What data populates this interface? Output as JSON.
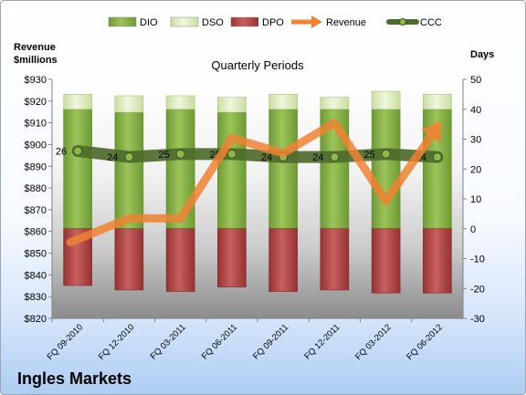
{
  "chart_data": {
    "type": "bar",
    "title": "Quarterly Periods",
    "company": "Ingles Markets",
    "left_axis_title": [
      "Revenue",
      "$millions"
    ],
    "right_axis_title": "Days",
    "left_ylim": [
      820,
      930
    ],
    "left_ticks": [
      "$820",
      "$830",
      "$840",
      "$850",
      "$860",
      "$870",
      "$880",
      "$890",
      "$900",
      "$910",
      "$920",
      "$930"
    ],
    "right_ylim": [
      -30,
      50
    ],
    "right_ticks": [
      "-30",
      "-20",
      "-10",
      "0",
      "10",
      "20",
      "30",
      "40",
      "50"
    ],
    "categories": [
      "FQ 09-2010",
      "FQ 12-2010",
      "FQ 03-2011",
      "FQ 06-2011",
      "FQ 09-2011",
      "FQ 12-2011",
      "FQ 03-2012",
      "FQ 06-2012"
    ],
    "legend": [
      "DIO",
      "DSO",
      "DPO",
      "Revenue",
      "CCC"
    ],
    "series": [
      {
        "name": "DIO",
        "axis": "right",
        "values": [
          40,
          39,
          40,
          39,
          40,
          40,
          40,
          40
        ]
      },
      {
        "name": "DSO",
        "axis": "right",
        "values": [
          5,
          5.5,
          4.5,
          5,
          5,
          4,
          6,
          5
        ]
      },
      {
        "name": "DPO",
        "axis": "right",
        "values": [
          -19,
          -20.5,
          -21,
          -19.5,
          -21,
          -20.5,
          -21.5,
          -21.5
        ]
      },
      {
        "name": "Revenue",
        "axis": "left",
        "values": [
          855,
          866,
          866,
          903,
          896,
          910,
          874,
          908
        ]
      },
      {
        "name": "CCC",
        "axis": "right",
        "values": [
          26,
          24,
          25,
          25,
          24,
          24,
          25,
          24
        ]
      }
    ],
    "ccc_labels": [
      "26",
      "24",
      "25",
      "25",
      "24",
      "24",
      "25",
      "24"
    ],
    "colors": {
      "DIO": "#86b146",
      "DSO": "#e1edc6",
      "DPO": "#b94a4a",
      "Revenue": "#ee8333",
      "CCC": "#4e6a2c"
    },
    "grid": false,
    "legend_position": "top"
  }
}
